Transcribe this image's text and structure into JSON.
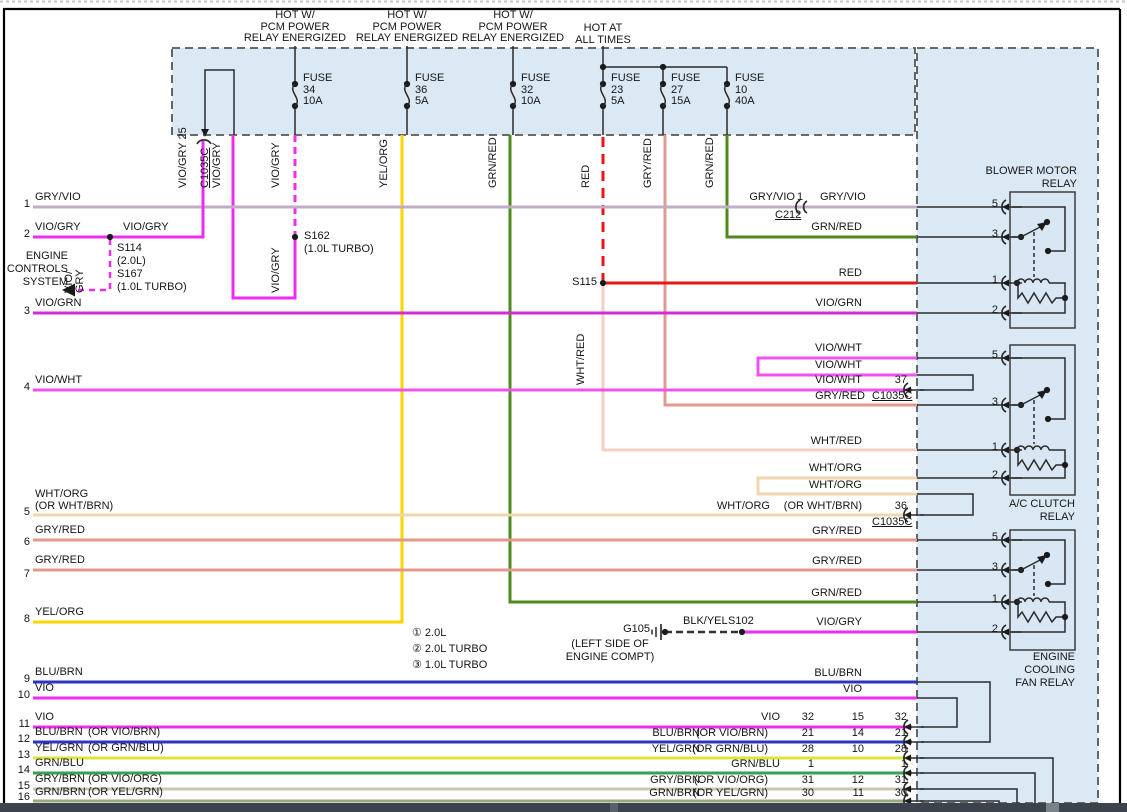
{
  "headers": {
    "pcm": "HOT W/\nPCM POWER\nRELAY ENERGIZED",
    "hot_all_times": "HOT AT\nALL TIMES"
  },
  "fuses": [
    {
      "label": "FUSE\n34\n10A"
    },
    {
      "label": "FUSE\n36\n5A"
    },
    {
      "label": "FUSE\n32\n10A"
    },
    {
      "label": "FUSE\n23\n5A"
    },
    {
      "label": "FUSE\n27\n15A"
    },
    {
      "label": "FUSE\n10\n40A"
    }
  ],
  "vlabels": {
    "v1": "VIO/GRY 25",
    "v2": "C1035C",
    "v3": "VIO/GRY",
    "v4": "VIO/GRY",
    "v5": "YEL/ORG",
    "v6": "GRN/RED",
    "v7": "RED",
    "v8": "GRY/RED",
    "v9": "GRN/RED",
    "v10": "WHT/RED",
    "v11": "VIO/GRY",
    "v12": "VIO/\nGRY"
  },
  "rows": [
    {
      "num": "1",
      "label": "GRY/VIO"
    },
    {
      "num": "2",
      "label": "VIO/GRY"
    },
    {
      "num": "3",
      "label": "VIO/GRN"
    },
    {
      "num": "4",
      "label": "VIO/WHT"
    },
    {
      "num": "5",
      "label": "WHT/ORG",
      "alt": "(OR WHT/BRN)"
    },
    {
      "num": "6",
      "label": "GRY/RED"
    },
    {
      "num": "7",
      "label": "GRY/RED"
    },
    {
      "num": "8",
      "label": "YEL/ORG"
    },
    {
      "num": "9",
      "label": "BLU/BRN"
    },
    {
      "num": "10",
      "label": "VIO"
    },
    {
      "num": "11",
      "label": "VIO"
    },
    {
      "num": "12",
      "label": "BLU/BRN",
      "alt": "(OR VIO/BRN)"
    },
    {
      "num": "13",
      "label": "YEL/GRN",
      "alt": "(OR GRN/BLU)"
    },
    {
      "num": "14",
      "label": "GRN/BLU"
    },
    {
      "num": "15",
      "label": "GRY/BRN",
      "alt": "(OR VIO/ORG)"
    },
    {
      "num": "16",
      "label": "GRN/BRN",
      "alt": "(OR YEL/GRN)"
    }
  ],
  "mid": {
    "row2_label2": "VIO/GRY",
    "s114": "S114\n(2.0L)\nS167\n(1.0L TURBO)",
    "engine_controls": "ENGINE\nCONTROLS\nSYSTEM",
    "s162": "S162\n(1.0L TURBO)",
    "s115": "S115",
    "variants": [
      "① 2.0L",
      "② 2.0L TURBO",
      "③ 1.0L TURBO"
    ],
    "g105": "G105",
    "g105_loc": "(LEFT SIDE OF\nENGINE COMPT)",
    "blkyel": "BLK/YEL",
    "s102": "S102"
  },
  "right": {
    "r1_left": "GRY/VIO",
    "r1_pin": "1",
    "c212": "C212",
    "r1_right": "GRY/VIO",
    "grn_red_blower": "GRN/RED",
    "red": "RED",
    "vio_grn": "VIO/GRN",
    "vio_wht_1": "VIO/WHT",
    "vio_wht_2": "VIO/WHT",
    "vio_wht_3": "VIO/WHT",
    "n37": "37",
    "c1035c_37": "C1035C",
    "gry_red_ac": "GRY/RED",
    "wht_red": "WHT/RED",
    "wht_org_1": "WHT/ORG",
    "wht_org_2": "WHT/ORG",
    "wht_org_3": "WHT/ORG",
    "wht_org_alt": "(OR WHT/BRN)",
    "n36": "36",
    "c1035c_36": "C1035C",
    "gry_red_fan5": "GRY/RED",
    "gry_red_fan3": "GRY/RED",
    "grn_red_fan": "GRN/RED",
    "vio_gry_fan": "VIO/GRY",
    "r9": "BLU/BRN",
    "r10": "VIO",
    "rows": [
      {
        "label": "VIO",
        "n1": "32",
        "n2": "15",
        "n3": "32"
      },
      {
        "label": "BLU/BRN",
        "alt": "(OR VIO/BRN)",
        "n1": "21",
        "n2": "14",
        "n3": "21"
      },
      {
        "label": "YEL/GRN",
        "alt": "(OR GRN/BLU)",
        "n1": "28",
        "n2": "10",
        "n3": "28"
      },
      {
        "label": "GRN/BLU",
        "n1": "1",
        "n3": "1"
      },
      {
        "label": "GRY/BRN",
        "alt": "(OR VIO/ORG)",
        "n1": "31",
        "n2": "12",
        "n3": "31"
      },
      {
        "label": "GRN/BRN",
        "alt": "(OR YEL/GRN)",
        "n1": "30",
        "n2": "11",
        "n3": "30"
      }
    ]
  },
  "relays": [
    {
      "title": "BLOWER MOTOR\nRELAY",
      "pins": [
        "5",
        "3",
        "1",
        "2"
      ]
    },
    {
      "title": "A/C CLUTCH\nRELAY",
      "pins": [
        "5",
        "3",
        "1",
        "2"
      ]
    },
    {
      "title": "ENGINE\nCOOLING\nFAN RELAY",
      "pins": [
        "5",
        "3",
        "1",
        "2"
      ]
    }
  ]
}
